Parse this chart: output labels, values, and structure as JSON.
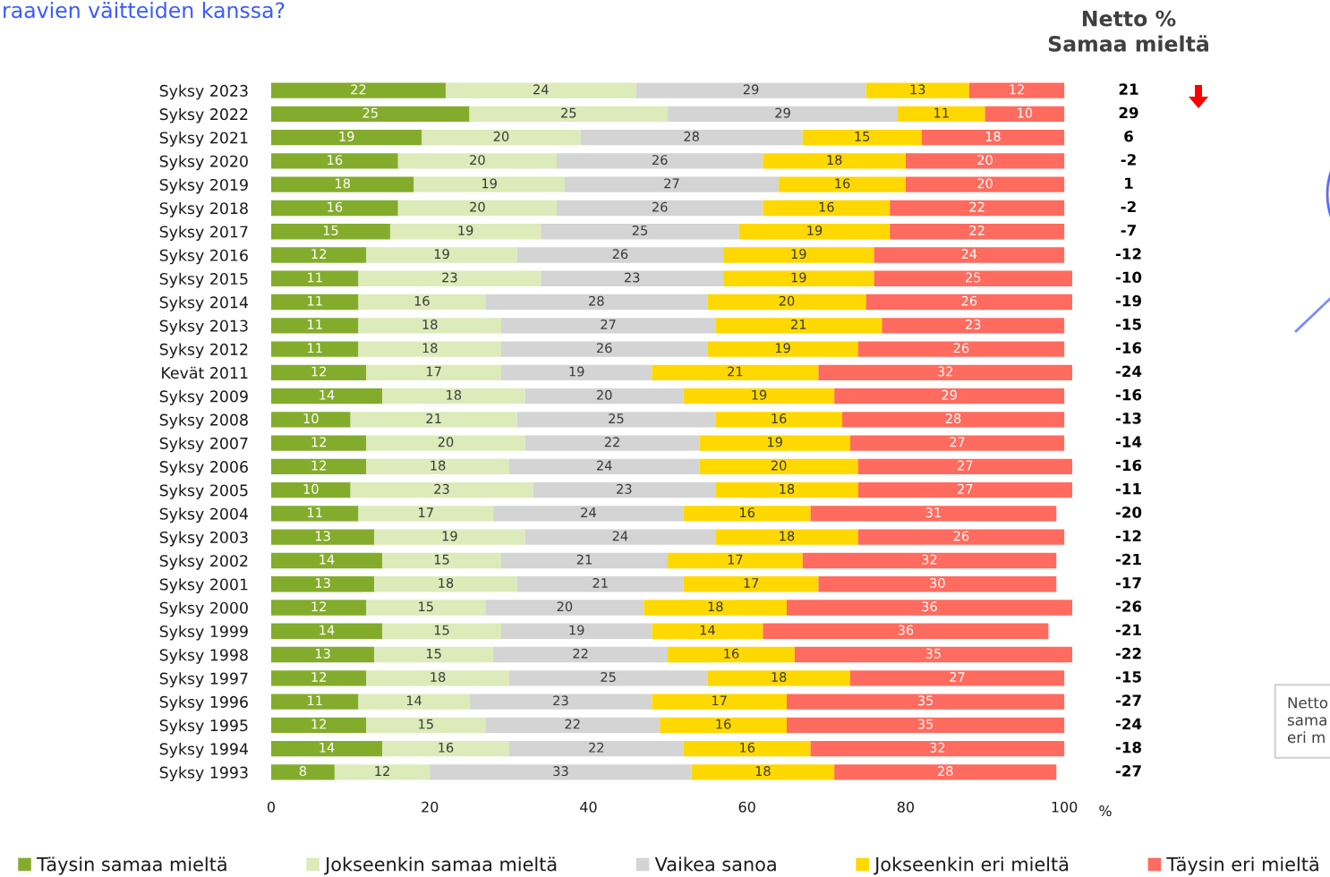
{
  "chart_data": [
    {
      "type": "bar",
      "orientation": "horizontal",
      "stacked": true,
      "title": "raavien väitteiden kanssa?",
      "xlabel": "%",
      "categories": [
        "Syksy 2023",
        "Syksy 2022",
        "Syksy 2021",
        "Syksy 2020",
        "Syksy 2019",
        "Syksy 2018",
        "Syksy 2017",
        "Syksy 2016",
        "Syksy 2015",
        "Syksy 2014",
        "Syksy 2013",
        "Syksy 2012",
        "Kevät 2011",
        "Syksy 2009",
        "Syksy 2008",
        "Syksy 2007",
        "Syksy 2006",
        "Syksy 2005",
        "Syksy 2004",
        "Syksy 2003",
        "Syksy 2002",
        "Syksy 2001",
        "Syksy 2000",
        "Syksy 1999",
        "Syksy 1998",
        "Syksy 1997",
        "Syksy 1996",
        "Syksy 1995",
        "Syksy 1994",
        "Syksy 1993"
      ],
      "series": [
        {
          "name": "Täysin samaa mieltä",
          "color": "#84ac2c",
          "values": [
            22,
            25,
            19,
            16,
            18,
            16,
            15,
            12,
            11,
            11,
            11,
            11,
            12,
            14,
            10,
            12,
            12,
            10,
            11,
            13,
            14,
            13,
            12,
            14,
            13,
            12,
            11,
            12,
            14,
            8
          ]
        },
        {
          "name": "Jokseenkin samaa mieltä",
          "color": "#dcebb9",
          "values": [
            24,
            25,
            20,
            20,
            19,
            20,
            19,
            19,
            23,
            16,
            18,
            18,
            17,
            18,
            21,
            20,
            18,
            23,
            17,
            19,
            15,
            18,
            15,
            15,
            15,
            18,
            14,
            15,
            16,
            12
          ]
        },
        {
          "name": "Vaikea sanoa",
          "color": "#d4d4d4",
          "values": [
            29,
            29,
            28,
            26,
            27,
            26,
            25,
            26,
            23,
            28,
            27,
            26,
            19,
            20,
            25,
            22,
            24,
            23,
            24,
            24,
            21,
            21,
            20,
            19,
            22,
            25,
            23,
            22,
            22,
            33
          ]
        },
        {
          "name": "Jokseenkin eri mieltä",
          "color": "#ffd800",
          "values": [
            13,
            11,
            15,
            18,
            16,
            16,
            19,
            19,
            19,
            20,
            21,
            19,
            21,
            19,
            16,
            19,
            20,
            18,
            16,
            18,
            17,
            17,
            18,
            14,
            16,
            18,
            17,
            16,
            16,
            18
          ]
        },
        {
          "name": "Täysin eri mieltä",
          "color": "#ff6b5e",
          "values": [
            12,
            10,
            18,
            20,
            20,
            22,
            22,
            24,
            25,
            26,
            23,
            26,
            32,
            29,
            28,
            27,
            27,
            27,
            31,
            26,
            32,
            30,
            36,
            36,
            35,
            27,
            35,
            35,
            32,
            28
          ]
        }
      ],
      "xlim": [
        0,
        101
      ],
      "xticks": [
        0,
        20,
        40,
        60,
        80,
        100
      ],
      "data_labels": true,
      "legend": "bottom"
    },
    {
      "type": "other",
      "title": "Netto %\nSamaa mieltä",
      "values": [
        21,
        29,
        6,
        -2,
        1,
        -2,
        -7,
        -12,
        -10,
        -19,
        -15,
        -16,
        -24,
        -16,
        -13,
        -14,
        -16,
        -11,
        -20,
        -12,
        -21,
        -17,
        -26,
        -21,
        -22,
        -15,
        -27,
        -24,
        -18,
        -27
      ],
      "data_labels": true,
      "annotations": [
        "Netto\nsama\neri m"
      ]
    }
  ]
}
